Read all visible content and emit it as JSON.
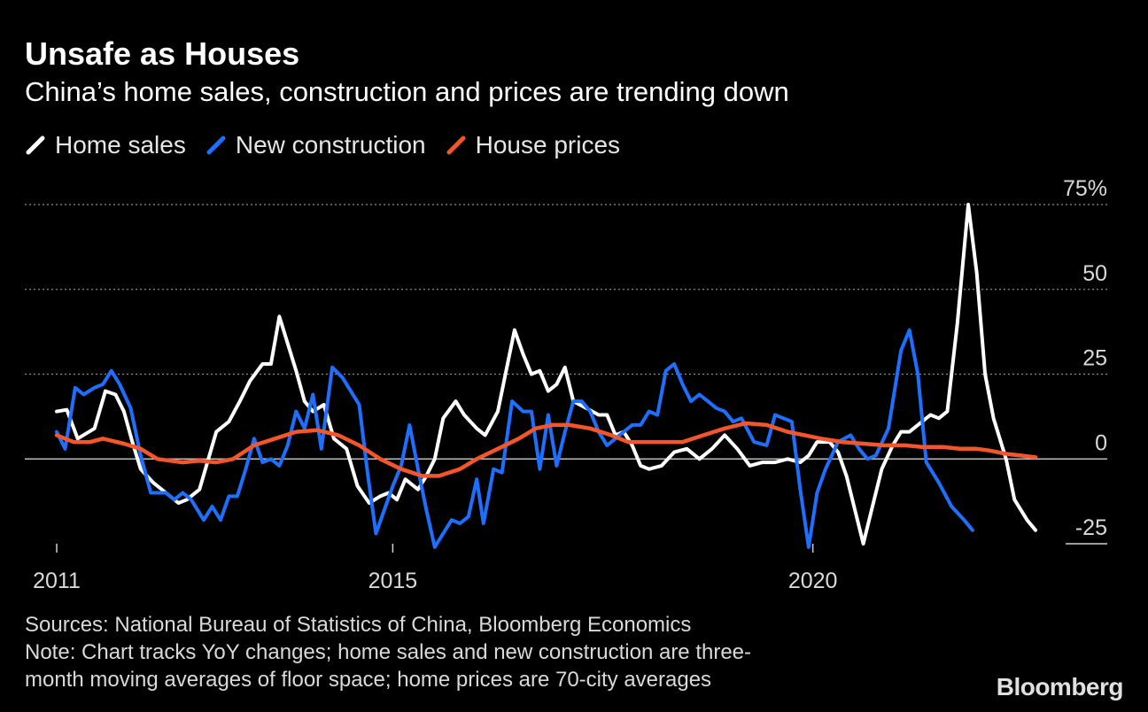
{
  "header": {
    "title": "Unsafe as Houses",
    "subtitle": "China’s home sales, construction and prices are trending down"
  },
  "legend": [
    {
      "label": "Home sales",
      "color": "#ffffff"
    },
    {
      "label": "New construction",
      "color": "#1f6fff"
    },
    {
      "label": "House prices",
      "color": "#f4562b"
    }
  ],
  "footer": {
    "sources": "Sources: National Bureau of Statistics of China, Bloomberg Economics",
    "note_line1": "Note: Chart tracks YoY changes; home sales and new construction are three-",
    "note_line2": "month moving averages of floor space; home prices are 70-city averages",
    "brand": "Bloomberg"
  },
  "chart_data": {
    "type": "line",
    "title": "Unsafe as Houses",
    "subtitle": "China’s home sales, construction and prices are trending down",
    "x_range": [
      2011,
      2022.25
    ],
    "x_ticks": [
      {
        "value": 2011,
        "label": "2011"
      },
      {
        "value": 2015,
        "label": "2015"
      },
      {
        "value": 2020,
        "label": "2020"
      }
    ],
    "ylim": [
      -25,
      75
    ],
    "y_ticks": [
      {
        "value": 75,
        "label": "75%"
      },
      {
        "value": 50,
        "label": "50"
      },
      {
        "value": 25,
        "label": "25"
      },
      {
        "value": 0,
        "label": "0"
      },
      {
        "value": -25,
        "label": "-25"
      }
    ],
    "grid": "horizontal dotted",
    "legend_position": "top-left",
    "series": [
      {
        "name": "Home sales",
        "color": "#ffffff",
        "points": [
          [
            2011.0,
            14
          ],
          [
            2011.12,
            14.5
          ],
          [
            2011.25,
            6
          ],
          [
            2011.45,
            9
          ],
          [
            2011.58,
            20
          ],
          [
            2011.7,
            19
          ],
          [
            2011.8,
            14
          ],
          [
            2011.9,
            5
          ],
          [
            2012.0,
            -3
          ],
          [
            2012.15,
            -7
          ],
          [
            2012.3,
            -10
          ],
          [
            2012.45,
            -13
          ],
          [
            2012.55,
            -12
          ],
          [
            2012.7,
            -9
          ],
          [
            2012.9,
            8
          ],
          [
            2013.05,
            11
          ],
          [
            2013.18,
            17
          ],
          [
            2013.3,
            23
          ],
          [
            2013.45,
            28
          ],
          [
            2013.55,
            28
          ],
          [
            2013.65,
            42
          ],
          [
            2013.75,
            34
          ],
          [
            2013.85,
            26
          ],
          [
            2013.95,
            17
          ],
          [
            2014.05,
            14
          ],
          [
            2014.18,
            16
          ],
          [
            2014.3,
            6
          ],
          [
            2014.45,
            3
          ],
          [
            2014.58,
            -8
          ],
          [
            2014.72,
            -13
          ],
          [
            2014.85,
            -11
          ],
          [
            2014.95,
            -10
          ],
          [
            2015.05,
            -12
          ],
          [
            2015.15,
            -6
          ],
          [
            2015.3,
            -9
          ],
          [
            2015.4,
            -5
          ],
          [
            2015.5,
            0
          ],
          [
            2015.6,
            12
          ],
          [
            2015.75,
            17
          ],
          [
            2015.85,
            13
          ],
          [
            2016.0,
            9
          ],
          [
            2016.1,
            7
          ],
          [
            2016.25,
            14
          ],
          [
            2016.35,
            26
          ],
          [
            2016.45,
            38
          ],
          [
            2016.55,
            31
          ],
          [
            2016.65,
            25
          ],
          [
            2016.75,
            26
          ],
          [
            2016.85,
            20
          ],
          [
            2016.95,
            22
          ],
          [
            2017.05,
            27
          ],
          [
            2017.15,
            17
          ],
          [
            2017.3,
            15
          ],
          [
            2017.45,
            13
          ],
          [
            2017.55,
            13
          ],
          [
            2017.65,
            7
          ],
          [
            2017.75,
            8
          ],
          [
            2017.85,
            4
          ],
          [
            2017.95,
            -2
          ],
          [
            2018.05,
            -3
          ],
          [
            2018.2,
            -2
          ],
          [
            2018.35,
            2
          ],
          [
            2018.5,
            3
          ],
          [
            2018.65,
            0
          ],
          [
            2018.8,
            3
          ],
          [
            2018.95,
            7
          ],
          [
            2019.1,
            3
          ],
          [
            2019.25,
            -2
          ],
          [
            2019.4,
            -1
          ],
          [
            2019.55,
            -1
          ],
          [
            2019.7,
            0
          ],
          [
            2019.85,
            -1
          ],
          [
            2019.95,
            1
          ],
          [
            2020.05,
            5
          ],
          [
            2020.2,
            5
          ],
          [
            2020.3,
            2
          ],
          [
            2020.4,
            -5
          ],
          [
            2020.5,
            -15
          ],
          [
            2020.6,
            -25
          ],
          [
            2020.7,
            -15
          ],
          [
            2020.82,
            -3
          ],
          [
            2020.95,
            4
          ],
          [
            2021.05,
            8
          ],
          [
            2021.15,
            8
          ],
          [
            2021.3,
            11
          ],
          [
            2021.4,
            13
          ],
          [
            2021.5,
            12
          ],
          [
            2021.6,
            14
          ],
          [
            2021.72,
            40
          ],
          [
            2021.85,
            75
          ],
          [
            2021.95,
            55
          ],
          [
            2022.05,
            25
          ],
          [
            2022.15,
            12
          ],
          [
            2022.3,
            0
          ],
          [
            2022.4,
            -12
          ],
          [
            2022.55,
            -18
          ],
          [
            2022.65,
            -21
          ]
        ]
      },
      {
        "name": "New construction",
        "color": "#1f6fff",
        "points": [
          [
            2011.0,
            8
          ],
          [
            2011.1,
            3
          ],
          [
            2011.22,
            21
          ],
          [
            2011.32,
            19
          ],
          [
            2011.45,
            21
          ],
          [
            2011.55,
            22
          ],
          [
            2011.65,
            26
          ],
          [
            2011.75,
            22
          ],
          [
            2011.88,
            15
          ],
          [
            2012.0,
            1
          ],
          [
            2012.12,
            -10
          ],
          [
            2012.2,
            -10
          ],
          [
            2012.3,
            -10
          ],
          [
            2012.4,
            -12
          ],
          [
            2012.5,
            -10
          ],
          [
            2012.6,
            -12
          ],
          [
            2012.75,
            -18
          ],
          [
            2012.85,
            -14
          ],
          [
            2012.95,
            -18
          ],
          [
            2013.05,
            -11
          ],
          [
            2013.15,
            -11
          ],
          [
            2013.25,
            -3
          ],
          [
            2013.35,
            6
          ],
          [
            2013.45,
            -1
          ],
          [
            2013.55,
            0
          ],
          [
            2013.65,
            -2
          ],
          [
            2013.75,
            4
          ],
          [
            2013.85,
            14
          ],
          [
            2013.95,
            9
          ],
          [
            2014.05,
            19
          ],
          [
            2014.15,
            3
          ],
          [
            2014.28,
            27
          ],
          [
            2014.4,
            24
          ],
          [
            2014.5,
            20
          ],
          [
            2014.6,
            16
          ],
          [
            2014.7,
            -4
          ],
          [
            2014.8,
            -22
          ],
          [
            2014.9,
            -15
          ],
          [
            2015.0,
            -8
          ],
          [
            2015.1,
            -2
          ],
          [
            2015.2,
            10
          ],
          [
            2015.3,
            -3
          ],
          [
            2015.4,
            -15
          ],
          [
            2015.5,
            -26
          ],
          [
            2015.6,
            -22
          ],
          [
            2015.7,
            -18
          ],
          [
            2015.8,
            -19
          ],
          [
            2015.9,
            -17
          ],
          [
            2016.0,
            -6
          ],
          [
            2016.08,
            -19
          ],
          [
            2016.2,
            -3
          ],
          [
            2016.3,
            -4
          ],
          [
            2016.42,
            17
          ],
          [
            2016.55,
            14
          ],
          [
            2016.65,
            14
          ],
          [
            2016.75,
            -3
          ],
          [
            2016.85,
            13
          ],
          [
            2016.95,
            -2
          ],
          [
            2017.05,
            8
          ],
          [
            2017.15,
            17
          ],
          [
            2017.25,
            17
          ],
          [
            2017.35,
            14
          ],
          [
            2017.45,
            8
          ],
          [
            2017.55,
            4
          ],
          [
            2017.65,
            6
          ],
          [
            2017.75,
            8
          ],
          [
            2017.85,
            10
          ],
          [
            2017.95,
            10
          ],
          [
            2018.05,
            14
          ],
          [
            2018.15,
            13
          ],
          [
            2018.25,
            26
          ],
          [
            2018.35,
            28
          ],
          [
            2018.45,
            22
          ],
          [
            2018.55,
            17
          ],
          [
            2018.65,
            19
          ],
          [
            2018.75,
            17
          ],
          [
            2018.85,
            15
          ],
          [
            2018.95,
            14
          ],
          [
            2019.05,
            11
          ],
          [
            2019.15,
            12
          ],
          [
            2019.3,
            5
          ],
          [
            2019.45,
            4
          ],
          [
            2019.55,
            13
          ],
          [
            2019.65,
            12
          ],
          [
            2019.75,
            11
          ],
          [
            2019.85,
            -9
          ],
          [
            2019.95,
            -26
          ],
          [
            2020.05,
            -10
          ],
          [
            2020.15,
            -3
          ],
          [
            2020.3,
            5
          ],
          [
            2020.45,
            7
          ],
          [
            2020.55,
            3
          ],
          [
            2020.65,
            0
          ],
          [
            2020.75,
            1
          ],
          [
            2020.9,
            9
          ],
          [
            2021.05,
            32
          ],
          [
            2021.15,
            38
          ],
          [
            2021.25,
            25
          ],
          [
            2021.35,
            -1
          ],
          [
            2021.5,
            -7
          ],
          [
            2021.65,
            -14
          ],
          [
            2021.8,
            -18
          ],
          [
            2021.9,
            -21
          ]
        ]
      },
      {
        "name": "House prices",
        "color": "#f4562b",
        "points": [
          [
            2011.0,
            7
          ],
          [
            2011.2,
            5
          ],
          [
            2011.4,
            5
          ],
          [
            2011.55,
            6
          ],
          [
            2011.8,
            4.5
          ],
          [
            2012.0,
            3
          ],
          [
            2012.2,
            0
          ],
          [
            2012.5,
            -1
          ],
          [
            2012.7,
            -0.5
          ],
          [
            2012.9,
            -1
          ],
          [
            2013.1,
            0
          ],
          [
            2013.35,
            4
          ],
          [
            2013.6,
            6
          ],
          [
            2013.85,
            8
          ],
          [
            2014.1,
            8.5
          ],
          [
            2014.35,
            7
          ],
          [
            2014.6,
            4
          ],
          [
            2014.85,
            0
          ],
          [
            2015.1,
            -3
          ],
          [
            2015.35,
            -5
          ],
          [
            2015.55,
            -5
          ],
          [
            2015.8,
            -3
          ],
          [
            2016.0,
            0
          ],
          [
            2016.25,
            3
          ],
          [
            2016.5,
            6
          ],
          [
            2016.7,
            9
          ],
          [
            2016.9,
            10
          ],
          [
            2017.1,
            10
          ],
          [
            2017.35,
            9
          ],
          [
            2017.6,
            7
          ],
          [
            2017.8,
            5
          ],
          [
            2018.0,
            5
          ],
          [
            2018.25,
            5
          ],
          [
            2018.45,
            5
          ],
          [
            2018.7,
            7
          ],
          [
            2018.95,
            9
          ],
          [
            2019.2,
            10.5
          ],
          [
            2019.45,
            10
          ],
          [
            2019.7,
            8
          ],
          [
            2019.9,
            7
          ],
          [
            2020.1,
            6
          ],
          [
            2020.35,
            5
          ],
          [
            2020.6,
            4.5
          ],
          [
            2020.85,
            4
          ],
          [
            2021.1,
            4
          ],
          [
            2021.3,
            3.5
          ],
          [
            2021.55,
            3.5
          ],
          [
            2021.75,
            3
          ],
          [
            2021.95,
            3
          ],
          [
            2022.1,
            2.5
          ],
          [
            2022.3,
            1.5
          ],
          [
            2022.65,
            0.5
          ]
        ]
      }
    ]
  }
}
